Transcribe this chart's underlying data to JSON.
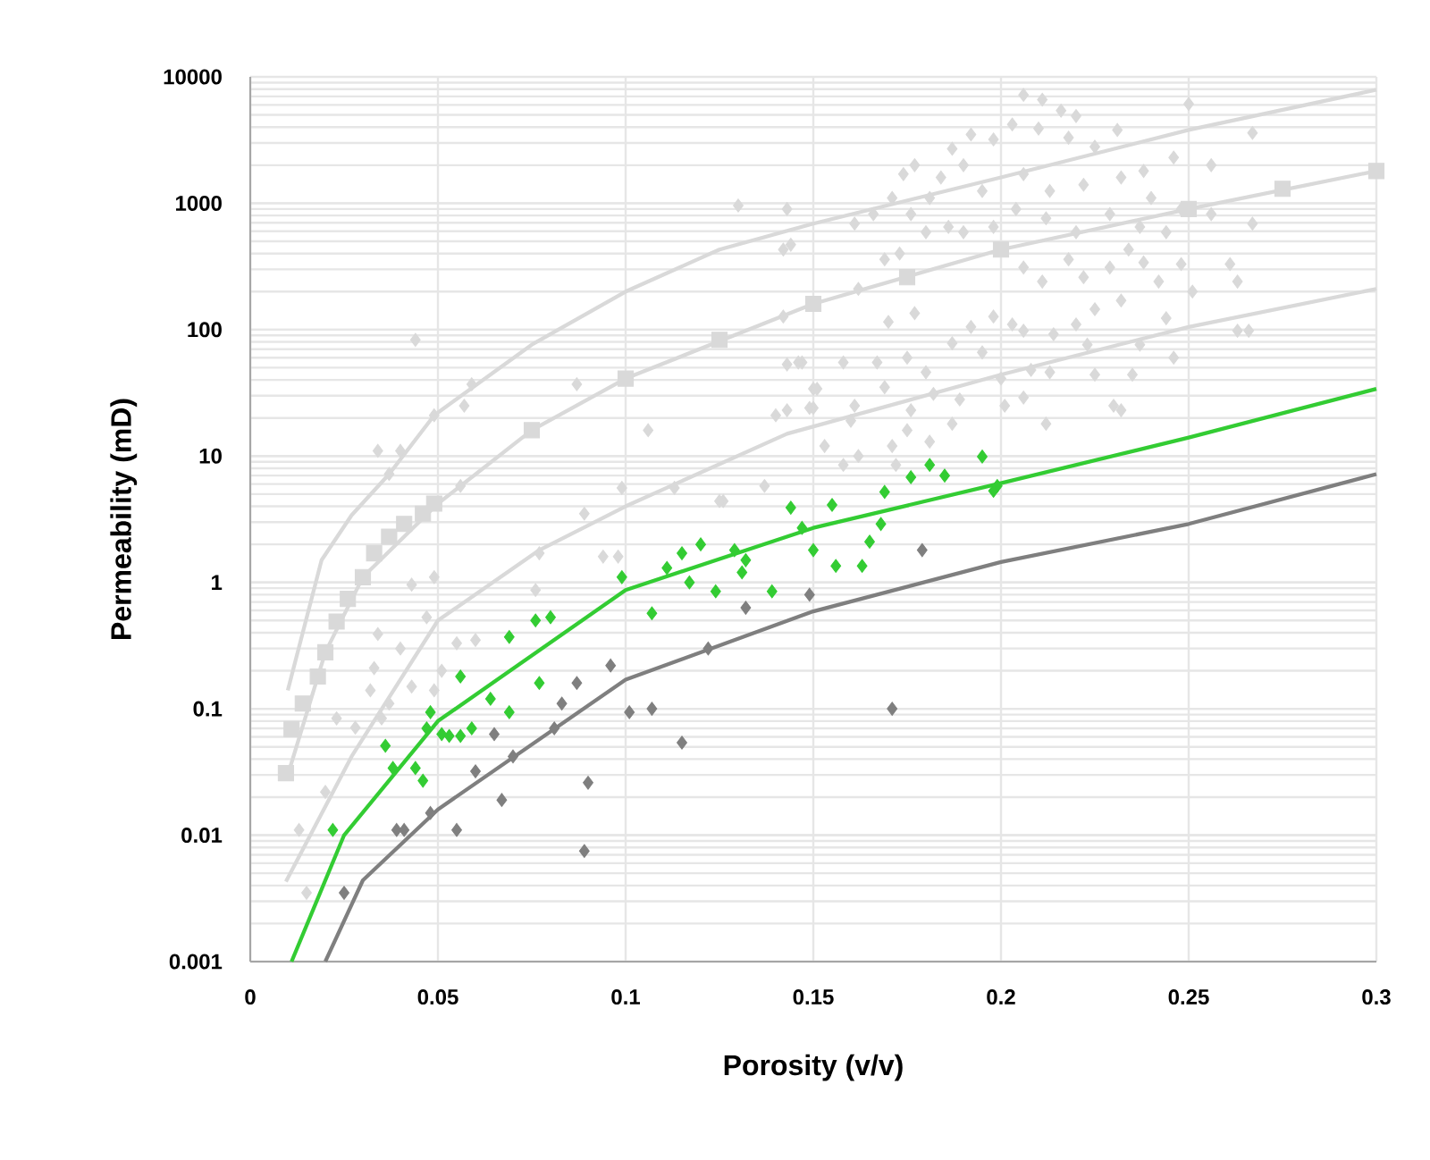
{
  "chart_data": {
    "type": "scatter",
    "xlabel": "Porosity (v/v)",
    "ylabel": "Permeability (mD)",
    "log": "y",
    "grid": true,
    "xlim": [
      0,
      0.3
    ],
    "ylim": [
      0.001,
      10000
    ],
    "xticks": [
      0,
      0.05,
      0.1,
      0.15,
      0.2,
      0.25,
      0.3
    ],
    "yticks": [
      0.001,
      0.01,
      0.1,
      1,
      10,
      100,
      1000,
      10000
    ],
    "series": [
      {
        "marker": "diamond",
        "color": "#d9d9d9",
        "x": [
          0.13,
          0.143,
          0.142,
          0.044,
          0.059,
          0.057,
          0.049,
          0.034,
          0.04,
          0.037,
          0.056,
          0.087,
          0.106,
          0.099,
          0.113,
          0.126,
          0.137,
          0.142,
          0.143,
          0.147,
          0.14,
          0.15,
          0.15,
          0.089,
          0.206,
          0.211,
          0.216,
          0.22,
          0.25,
          0.267,
          0.256,
          0.246,
          0.238,
          0.231,
          0.225,
          0.218,
          0.21,
          0.203,
          0.198,
          0.192,
          0.187,
          0.19,
          0.184,
          0.177,
          0.174,
          0.181,
          0.195,
          0.206,
          0.213,
          0.222,
          0.232,
          0.24,
          0.248,
          0.256,
          0.267,
          0.244,
          0.237,
          0.229,
          0.22,
          0.212,
          0.204,
          0.198,
          0.19,
          0.186,
          0.18,
          0.176,
          0.166,
          0.161,
          0.171,
          0.144,
          0.169,
          0.173,
          0.162,
          0.206,
          0.211,
          0.218,
          0.222,
          0.229,
          0.234,
          0.238,
          0.242,
          0.248,
          0.251,
          0.261,
          0.263,
          0.225,
          0.232,
          0.22,
          0.214,
          0.223,
          0.206,
          0.203,
          0.198,
          0.192,
          0.187,
          0.177,
          0.17,
          0.167,
          0.158,
          0.146,
          0.175,
          0.18,
          0.195,
          0.2,
          0.208,
          0.213,
          0.225,
          0.235,
          0.237,
          0.246,
          0.244,
          0.263,
          0.266,
          0.151,
          0.149,
          0.161,
          0.169,
          0.176,
          0.182,
          0.189,
          0.206,
          0.201,
          0.23,
          0.232,
          0.212,
          0.16,
          0.175,
          0.187,
          0.181,
          0.171,
          0.153,
          0.158,
          0.162,
          0.172,
          0.143,
          0.049,
          0.043,
          0.047,
          0.034,
          0.04,
          0.033,
          0.043,
          0.032,
          0.037,
          0.049,
          0.023,
          0.028,
          0.035,
          0.051,
          0.055,
          0.06,
          0.077,
          0.076,
          0.094,
          0.098,
          0.125,
          0.02,
          0.013,
          0.015
        ],
        "values": [
          960,
          900,
          430,
          83,
          37,
          25,
          21,
          11,
          11,
          7.2,
          5.8,
          37,
          16,
          5.6,
          5.6,
          4.4,
          5.8,
          127,
          53,
          55,
          21,
          34,
          24,
          3.5,
          7200,
          6600,
          5400,
          4900,
          6100,
          3600,
          2000,
          2300,
          1800,
          3800,
          2800,
          3300,
          3900,
          4200,
          3200,
          3500,
          2700,
          2000,
          1600,
          2000,
          1700,
          1100,
          1250,
          1700,
          1250,
          1400,
          1600,
          1100,
          900,
          820,
          690,
          590,
          650,
          820,
          590,
          760,
          900,
          650,
          590,
          650,
          590,
          820,
          820,
          690,
          1100,
          470,
          360,
          400,
          210,
          310,
          240,
          360,
          260,
          310,
          430,
          340,
          240,
          330,
          200,
          330,
          240,
          145,
          170,
          110,
          92,
          76,
          98,
          110,
          127,
          105,
          78,
          135,
          115,
          55,
          55,
          55,
          60,
          46,
          66,
          41,
          48,
          46,
          44,
          44,
          76,
          60,
          123,
          98,
          98,
          34,
          24,
          25,
          35,
          23,
          31,
          28,
          29,
          25,
          25,
          23,
          18,
          19,
          16,
          18,
          13,
          12,
          12,
          8.5,
          10,
          8.5,
          23,
          1.1,
          0.96,
          0.53,
          0.39,
          0.3,
          0.21,
          0.15,
          0.14,
          0.11,
          0.14,
          0.084,
          0.071,
          0.084,
          0.2,
          0.33,
          0.35,
          1.7,
          0.87,
          1.6,
          1.6,
          4.4,
          0.022,
          0.011,
          0.0035
        ]
      },
      {
        "marker": "square",
        "color": "#d9d9d9",
        "x": [
          0.0095,
          0.011,
          0.014,
          0.018,
          0.02,
          0.023,
          0.026,
          0.03,
          0.033,
          0.037,
          0.041,
          0.046,
          0.049,
          0.075,
          0.1,
          0.125,
          0.15,
          0.175,
          0.2,
          0.25,
          0.275,
          0.3
        ],
        "values": [
          0.031,
          0.069,
          0.11,
          0.18,
          0.28,
          0.49,
          0.74,
          1.1,
          1.7,
          2.3,
          2.9,
          3.5,
          4.2,
          16,
          41,
          83,
          160,
          260,
          430,
          900,
          1300,
          1800
        ]
      },
      {
        "type": "line",
        "marker": "none",
        "line_style": "solid",
        "color": "#d9d9d9",
        "x": [
          0.01,
          0.019,
          0.027,
          0.037,
          0.049,
          0.075,
          0.1,
          0.125,
          0.15,
          0.2,
          0.25,
          0.3
        ],
        "values": [
          0.14,
          1.5,
          3.4,
          7.2,
          21,
          76,
          200,
          430,
          690,
          1600,
          3800,
          7900
        ]
      },
      {
        "type": "line",
        "marker": "none",
        "line_style": "solid",
        "color": "#d9d9d9",
        "x": [
          0.01,
          0.02,
          0.03,
          0.05,
          0.075,
          0.1,
          0.15,
          0.2,
          0.25,
          0.3
        ],
        "values": [
          0.03,
          0.28,
          1.1,
          4.2,
          16,
          41,
          160,
          430,
          900,
          1800
        ]
      },
      {
        "type": "line",
        "marker": "none",
        "line_style": "solid",
        "color": "#d9d9d9",
        "x": [
          0.0095,
          0.027,
          0.05,
          0.077,
          0.1,
          0.143,
          0.2,
          0.25,
          0.3
        ],
        "values": [
          0.0043,
          0.042,
          0.5,
          1.8,
          4,
          15,
          44,
          105,
          210
        ]
      },
      {
        "marker": "diamond",
        "color": "#33cc33",
        "x": [
          0.022,
          0.036,
          0.038,
          0.044,
          0.046,
          0.048,
          0.051,
          0.047,
          0.053,
          0.056,
          0.059,
          0.056,
          0.064,
          0.069,
          0.069,
          0.077,
          0.076,
          0.08,
          0.099,
          0.107,
          0.111,
          0.115,
          0.12,
          0.117,
          0.124,
          0.129,
          0.132,
          0.131,
          0.139,
          0.144,
          0.147,
          0.15,
          0.156,
          0.163,
          0.165,
          0.168,
          0.155,
          0.169,
          0.176,
          0.181,
          0.185,
          0.195,
          0.199,
          0.198
        ],
        "values": [
          0.011,
          0.051,
          0.034,
          0.034,
          0.027,
          0.094,
          0.063,
          0.07,
          0.061,
          0.061,
          0.07,
          0.18,
          0.12,
          0.094,
          0.37,
          0.16,
          0.5,
          0.53,
          1.1,
          0.57,
          1.3,
          1.7,
          2.0,
          1.0,
          0.85,
          1.8,
          1.5,
          1.2,
          0.85,
          3.9,
          2.7,
          1.8,
          1.35,
          1.35,
          2.1,
          2.9,
          4.1,
          5.2,
          6.8,
          8.5,
          7,
          9.9,
          5.8,
          5.3
        ]
      },
      {
        "marker": "diamond",
        "color": "#7f7f7f",
        "x": [
          0.025,
          0.039,
          0.041,
          0.048,
          0.055,
          0.06,
          0.067,
          0.065,
          0.07,
          0.081,
          0.083,
          0.087,
          0.096,
          0.09,
          0.089,
          0.101,
          0.107,
          0.115,
          0.122,
          0.132,
          0.149,
          0.179,
          0.171
        ],
        "values": [
          0.0035,
          0.011,
          0.011,
          0.015,
          0.011,
          0.032,
          0.019,
          0.063,
          0.042,
          0.07,
          0.11,
          0.16,
          0.22,
          0.026,
          0.0075,
          0.094,
          0.1,
          0.054,
          0.3,
          0.63,
          0.8,
          1.8,
          0.1
        ]
      },
      {
        "type": "line",
        "marker": "none",
        "line_style": "solid",
        "color": "#33cc33",
        "x": [
          0.011,
          0.025,
          0.05,
          0.1,
          0.15,
          0.2,
          0.25,
          0.3
        ],
        "values": [
          0.001,
          0.01,
          0.08,
          0.87,
          2.7,
          6.1,
          14,
          34
        ]
      },
      {
        "type": "line",
        "marker": "none",
        "line_style": "solid",
        "color": "#7f7f7f",
        "x": [
          0.02,
          0.03,
          0.05,
          0.1,
          0.15,
          0.2,
          0.25,
          0.3
        ],
        "values": [
          0.001,
          0.0044,
          0.016,
          0.17,
          0.59,
          1.45,
          2.9,
          7.2
        ]
      }
    ]
  }
}
